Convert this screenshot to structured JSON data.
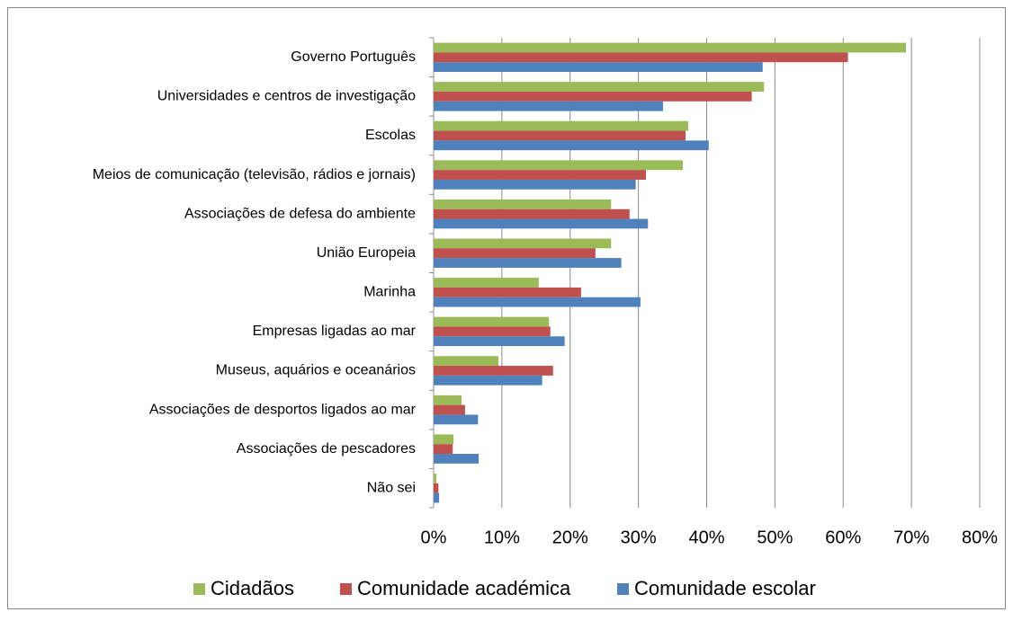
{
  "chart_data": {
    "type": "hbar",
    "categories": [
      "Governo Português",
      "Universidades e centros de investigação",
      "Escolas",
      "Meios de comunicação (televisão, rádios e jornais)",
      "Associações de defesa do ambiente",
      "União Europeia",
      "Marinha",
      "Empresas ligadas ao mar",
      "Museus, aquários e oceanários",
      "Associações de desportos ligados ao mar",
      "Associações de pescadores",
      "Não sei"
    ],
    "series": [
      {
        "name": "Cidadãos",
        "color": "#9bbb59",
        "values": [
          69.2,
          48.4,
          37.3,
          36.5,
          26.0,
          26.0,
          15.4,
          16.9,
          9.5,
          4.1,
          2.9,
          0.4
        ]
      },
      {
        "name": "Comunidade académica",
        "color": "#c0504d",
        "values": [
          60.7,
          46.6,
          36.9,
          31.1,
          28.7,
          23.7,
          21.6,
          17.1,
          17.5,
          4.6,
          2.8,
          0.7
        ]
      },
      {
        "name": "Comunidade escolar",
        "color": "#4f81bd",
        "values": [
          48.2,
          33.6,
          40.3,
          29.6,
          31.4,
          27.5,
          30.3,
          19.2,
          15.9,
          6.5,
          6.6,
          0.8
        ]
      }
    ],
    "xlim": [
      0,
      80
    ],
    "xticks": [
      {
        "value": 0,
        "label": "0%"
      },
      {
        "value": 10,
        "label": "10%"
      },
      {
        "value": 20,
        "label": "20%"
      },
      {
        "value": 30,
        "label": "30%"
      },
      {
        "value": 40,
        "label": "40%"
      },
      {
        "value": 50,
        "label": "50%"
      },
      {
        "value": 60,
        "label": "60%"
      },
      {
        "value": 70,
        "label": "70%"
      },
      {
        "value": 80,
        "label": "80%"
      }
    ],
    "grid": true,
    "legend": "bottom"
  }
}
